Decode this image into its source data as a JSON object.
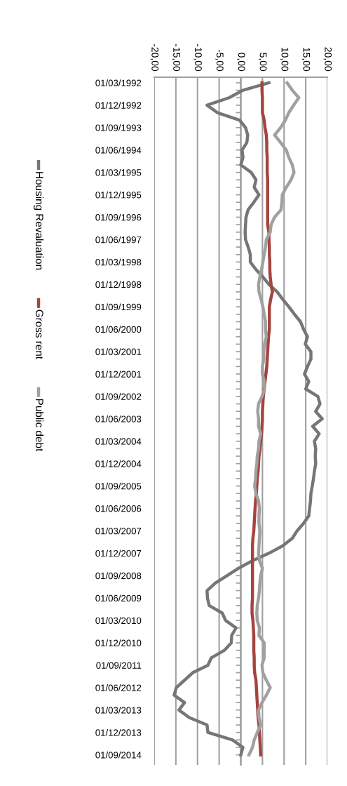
{
  "chart_data": {
    "type": "line",
    "orientation": "horizontal",
    "categories": [
      "01/03/1992",
      null,
      null,
      "01/12/1992",
      null,
      null,
      "01/09/1993",
      null,
      null,
      "01/06/1994",
      null,
      null,
      "01/03/1995",
      null,
      null,
      "01/12/1995",
      null,
      null,
      "01/09/1996",
      null,
      null,
      "01/06/1997",
      null,
      null,
      "01/03/1998",
      null,
      null,
      "01/12/1998",
      null,
      null,
      "01/09/1999",
      null,
      null,
      "01/06/2000",
      null,
      null,
      "01/03/2001",
      null,
      null,
      "01/12/2001",
      null,
      null,
      "01/09/2002",
      null,
      null,
      "01/06/2003",
      null,
      null,
      "01/03/2004",
      null,
      null,
      "01/12/2004",
      null,
      null,
      "01/09/2005",
      null,
      null,
      "01/06/2006",
      null,
      null,
      "01/03/2007",
      null,
      null,
      "01/12/2007",
      null,
      null,
      "01/09/2008",
      null,
      null,
      "01/06/2009",
      null,
      null,
      "01/03/2010",
      null,
      null,
      "01/12/2010",
      null,
      null,
      "01/09/2011",
      null,
      null,
      "01/06/2012",
      null,
      null,
      "01/03/2013",
      null,
      null,
      "01/12/2013",
      null,
      null,
      "01/09/2014"
    ],
    "series": [
      {
        "name": "Housing Revaluation",
        "color": "#767676",
        "values": [
          6.5,
          0.5,
          -2.7,
          -7.8,
          -5.4,
          -0.3,
          1.1,
          1.6,
          1.4,
          0.3,
          0.5,
          0,
          2.4,
          3.5,
          3.1,
          4.2,
          3.0,
          1.7,
          1.2,
          1.1,
          1.0,
          1.1,
          1.7,
          2.2,
          2.2,
          3.5,
          5.1,
          6.5,
          8.4,
          9.7,
          11.1,
          12.4,
          13.8,
          14.5,
          15.4,
          14.9,
          16.2,
          16.2,
          15.4,
          14.7,
          15.7,
          15.0,
          17.8,
          18.3,
          17.3,
          18.8,
          16.6,
          18.1,
          17.0,
          17.3,
          17.2,
          17.3,
          17.0,
          16.8,
          16.5,
          16.2,
          16.1,
          15.9,
          15.7,
          14.5,
          13.0,
          11.9,
          9.7,
          6.5,
          2.7,
          -0.5,
          -3.2,
          -5.9,
          -7.8,
          -7.7,
          -7.3,
          -4.3,
          -3.5,
          -1.1,
          -2.1,
          -2.2,
          -3.8,
          -6.8,
          -7.6,
          -11.1,
          -13.0,
          -14.9,
          -15.4,
          -13.0,
          -14.3,
          -11.9,
          -7.8,
          -7.6,
          -1.9,
          0.5,
          0
        ]
      },
      {
        "name": "Gross rent",
        "color": "#a5443f",
        "values": [
          4.9,
          4.9,
          5.0,
          5.0,
          5.0,
          5.4,
          5.6,
          5.9,
          6.0,
          6.0,
          6.1,
          6.1,
          6.1,
          6.2,
          6.2,
          6.2,
          6.2,
          6.2,
          6.2,
          6.2,
          6.5,
          6.5,
          6.6,
          6.6,
          6.7,
          6.7,
          6.8,
          7.0,
          7.3,
          6.9,
          6.6,
          6.6,
          6.6,
          6.6,
          6.4,
          6.3,
          6.2,
          6.1,
          6.0,
          5.8,
          5.6,
          5.4,
          5.2,
          5.1,
          5.0,
          5.0,
          4.9,
          4.8,
          4.6,
          4.4,
          4.2,
          4.1,
          4.0,
          3.8,
          3.7,
          3.6,
          3.4,
          3.3,
          3.2,
          3.1,
          3.0,
          2.8,
          2.7,
          2.7,
          2.7,
          2.7,
          2.7,
          2.7,
          2.7,
          2.7,
          2.6,
          2.6,
          2.8,
          2.9,
          3.0,
          3.0,
          3.0,
          3.1,
          3.1,
          3.2,
          3.5,
          3.6,
          3.7,
          3.8,
          3.9,
          4.0,
          4.2,
          4.3,
          4.4,
          4.5,
          4.6
        ]
      },
      {
        "name": "Public debt",
        "color": "#a0a0a0",
        "values": [
          10.7,
          11.9,
          13.4,
          12.2,
          11.1,
          10.3,
          9.2,
          7.8,
          9.2,
          10.5,
          11.1,
          11.9,
          12.3,
          11.6,
          10.5,
          9.6,
          9.5,
          9.3,
          7.8,
          7.0,
          6.8,
          5.9,
          5.7,
          5.4,
          5.1,
          4.8,
          4.4,
          4.1,
          4.2,
          4.7,
          5.1,
          5.4,
          5.7,
          5.7,
          5.9,
          5.5,
          5.3,
          5.3,
          5.0,
          5.0,
          5.4,
          5.5,
          4.9,
          4.1,
          3.9,
          4.1,
          4.1,
          4.6,
          4.2,
          4.1,
          3.8,
          3.7,
          3.5,
          3.4,
          3.2,
          3.5,
          4.1,
          4.3,
          4.2,
          4.2,
          4.4,
          4.3,
          4.2,
          4.1,
          4.3,
          5.0,
          4.6,
          4.4,
          4.3,
          4.1,
          3.8,
          3.7,
          3.8,
          4.3,
          4.2,
          5.4,
          5.4,
          5.4,
          4.9,
          5.1,
          5.9,
          6.8,
          5.9,
          4.9,
          4.1,
          4.2,
          4.6,
          3.8,
          3.1,
          2.7,
          1.9
        ]
      }
    ],
    "xlim": [
      -20,
      20
    ],
    "xticks": [
      {
        "value": -20,
        "label": "-20,00"
      },
      {
        "value": -15,
        "label": "-15,00"
      },
      {
        "value": -10,
        "label": "-10,00"
      },
      {
        "value": -5,
        "label": "-5,00"
      },
      {
        "value": 0,
        "label": "0,00"
      },
      {
        "value": 5,
        "label": "5,00"
      },
      {
        "value": 10,
        "label": "10,00"
      },
      {
        "value": 15,
        "label": "15,00"
      },
      {
        "value": 20,
        "label": "20,00"
      }
    ],
    "grid": "x",
    "legend": "left",
    "line_style": "solid",
    "marker": "none"
  }
}
